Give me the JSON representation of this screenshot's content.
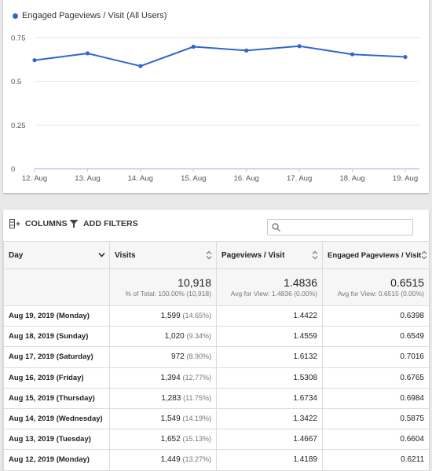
{
  "chart_data": {
    "type": "line",
    "legend": "Engaged Pageviews / Visit (All Users)",
    "categories": [
      "12. Aug",
      "13. Aug",
      "14. Aug",
      "15. Aug",
      "16. Aug",
      "17. Aug",
      "18. Aug",
      "19. Aug"
    ],
    "series": [
      {
        "name": "Engaged Pageviews / Visit (All Users)",
        "values": [
          0.6211,
          0.6604,
          0.5875,
          0.6984,
          0.6765,
          0.7016,
          0.6549,
          0.6398
        ]
      }
    ],
    "y_ticks": [
      "0",
      "0.25",
      "0.5",
      "0.75"
    ],
    "ylim": [
      0,
      0.75
    ],
    "grid": true,
    "color": "#3266cc"
  },
  "toolbar": {
    "columns_label": "COLUMNS",
    "filters_label": "ADD FILTERS",
    "search_placeholder": ""
  },
  "table": {
    "headers": [
      "Day",
      "Visits",
      "Pageviews / Visit",
      "Engaged Pageviews / Visit"
    ],
    "totals": {
      "visits": "10,918",
      "visits_sub": "% of Total: 100.00% (10,918)",
      "pv": "1.4836",
      "pv_sub": "Avg for View: 1.4836 (0.00%)",
      "epv": "0.6515",
      "epv_sub": "Avg for View: 0.6515 (0.00%)"
    },
    "rows": [
      {
        "day": "Aug 19, 2019 (Monday)",
        "visits": "1,599",
        "pct": "(14.65%)",
        "pv": "1.4422",
        "epv": "0.6398"
      },
      {
        "day": "Aug 18, 2019 (Sunday)",
        "visits": "1,020",
        "pct": "(9.34%)",
        "pv": "1.4559",
        "epv": "0.6549"
      },
      {
        "day": "Aug 17, 2019 (Saturday)",
        "visits": "972",
        "pct": "(8.90%)",
        "pv": "1.6132",
        "epv": "0.7016"
      },
      {
        "day": "Aug 16, 2019 (Friday)",
        "visits": "1,394",
        "pct": "(12.77%)",
        "pv": "1.5308",
        "epv": "0.6765"
      },
      {
        "day": "Aug 15, 2019 (Thursday)",
        "visits": "1,283",
        "pct": "(11.75%)",
        "pv": "1.6734",
        "epv": "0.6984"
      },
      {
        "day": "Aug 14, 2019 (Wednesday)",
        "visits": "1,549",
        "pct": "(14.19%)",
        "pv": "1.3422",
        "epv": "0.5875"
      },
      {
        "day": "Aug 13, 2019 (Tuesday)",
        "visits": "1,652",
        "pct": "(15.13%)",
        "pv": "1.4667",
        "epv": "0.6604"
      },
      {
        "day": "Aug 12, 2019 (Monday)",
        "visits": "1,449",
        "pct": "(13.27%)",
        "pv": "1.4189",
        "epv": "0.6211"
      }
    ]
  }
}
